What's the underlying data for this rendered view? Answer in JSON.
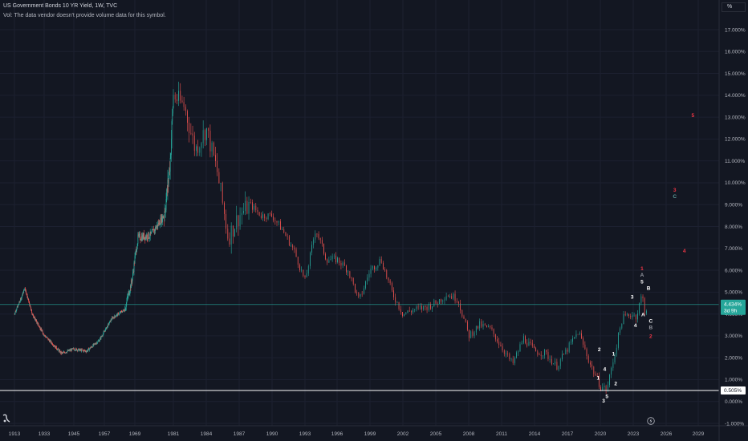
{
  "header": {
    "title": "US Government Bonds 10 YR Yield, 1W, TVC",
    "vol_note": "Vol: The data vendor doesn't provide volume data for this symbol."
  },
  "price_axis": {
    "unit": "%",
    "ticks": [
      "17.000%",
      "16.000%",
      "15.000%",
      "14.000%",
      "13.000%",
      "12.000%",
      "11.000%",
      "10.000%",
      "9.000%",
      "8.000%",
      "7.000%",
      "6.000%",
      "5.000%",
      "4.000%",
      "3.000%",
      "2.000%",
      "1.000%",
      "0.000%",
      "-1.000%"
    ],
    "current_label": "4.434%",
    "current_countdown": "3d 9h",
    "hline_label": "0.505%"
  },
  "time_axis": {
    "ticks": [
      "1913",
      "1933",
      "1945",
      "1957",
      "1969",
      "1981",
      "1984",
      "1987",
      "1990",
      "1993",
      "1996",
      "1999",
      "2002",
      "2005",
      "2008",
      "2011",
      "2014",
      "2017",
      "2020",
      "2023",
      "2026",
      "2029"
    ]
  },
  "colors": {
    "background": "#131722",
    "up": "#26a69a",
    "down": "#ef5350",
    "price_badge": "#26a69a",
    "hline": "#ffffff",
    "wave_white": "#ffffff",
    "wave_red": "#f23645",
    "wave_gray": "#9598a1",
    "wave_teal": "#5d9d9a"
  },
  "icons": {
    "logo": "tradingview-logo-icon",
    "goto": "lightning-goto-icon"
  },
  "chart_data": {
    "type": "line",
    "title": "US Government Bonds 10 YR Yield, 1W, TVC",
    "xlabel": "",
    "ylabel": "",
    "ylim": [
      -1,
      17
    ],
    "grid": true,
    "series": [
      {
        "name": "US10Y yield",
        "x": [
          1913,
          1918,
          1920,
          1925,
          1930,
          1935,
          1940,
          1945,
          1950,
          1955,
          1960,
          1965,
          1968,
          1970,
          1974,
          1978,
          1979,
          1980,
          1981,
          1982,
          1983,
          1984,
          1985,
          1986,
          1987,
          1988,
          1989,
          1990,
          1991,
          1992,
          1993,
          1994,
          1995,
          1996,
          1997,
          1998,
          1999,
          2000,
          2001,
          2002,
          2003,
          2004,
          2005,
          2006,
          2007,
          2008,
          2009,
          2010,
          2011,
          2012,
          2013,
          2014,
          2015,
          2016,
          2017,
          2018,
          2019,
          2020,
          2020.6,
          2021,
          2022,
          2022.8,
          2023.3,
          2023.8,
          2024.1,
          2024.3
        ],
        "values": [
          4.0,
          4.8,
          5.2,
          4.0,
          3.4,
          2.8,
          2.2,
          2.4,
          2.3,
          2.8,
          3.8,
          4.2,
          5.6,
          7.5,
          7.6,
          8.5,
          9.5,
          11.0,
          14.0,
          13.5,
          11.5,
          12.5,
          10.5,
          7.5,
          8.5,
          9.0,
          8.5,
          8.5,
          7.8,
          6.9,
          5.5,
          7.9,
          6.5,
          6.5,
          6.0,
          4.6,
          6.0,
          6.5,
          5.0,
          4.0,
          4.2,
          4.3,
          4.5,
          4.9,
          4.7,
          3.0,
          3.5,
          3.3,
          2.5,
          1.7,
          2.9,
          2.3,
          2.2,
          1.6,
          2.4,
          3.2,
          1.8,
          0.7,
          0.55,
          1.5,
          3.8,
          4.0,
          3.9,
          4.9,
          4.0,
          4.43
        ]
      }
    ],
    "horizontal_lines": [
      0.505
    ],
    "current_value": 4.434,
    "elliott_labels": [
      {
        "text": "1",
        "x": 2019.8,
        "y": 1.0,
        "color": "white"
      },
      {
        "text": "2",
        "x": 2019.9,
        "y": 2.3,
        "color": "white"
      },
      {
        "text": "3",
        "x": 2020.3,
        "y": -0.05,
        "color": "white"
      },
      {
        "text": "4",
        "x": 2020.4,
        "y": 1.4,
        "color": "white"
      },
      {
        "text": "5",
        "x": 2020.6,
        "y": 0.15,
        "color": "white"
      },
      {
        "text": "1",
        "x": 2021.2,
        "y": 2.1,
        "color": "white"
      },
      {
        "text": "2",
        "x": 2021.4,
        "y": 0.75,
        "color": "white"
      },
      {
        "text": "3",
        "x": 2022.9,
        "y": 4.7,
        "color": "white"
      },
      {
        "text": "4",
        "x": 2023.2,
        "y": 3.4,
        "color": "white"
      },
      {
        "text": "5",
        "x": 2023.8,
        "y": 5.4,
        "color": "white"
      },
      {
        "text": "A",
        "x": 2023.9,
        "y": 3.9,
        "color": "white"
      },
      {
        "text": "B",
        "x": 2024.4,
        "y": 5.1,
        "color": "white"
      },
      {
        "text": "C",
        "x": 2024.6,
        "y": 3.6,
        "color": "white"
      },
      {
        "text": "1",
        "x": 2023.8,
        "y": 6.0,
        "color": "red"
      },
      {
        "text": "A",
        "x": 2023.8,
        "y": 5.7,
        "color": "gray"
      },
      {
        "text": "B",
        "x": 2024.6,
        "y": 3.3,
        "color": "gray"
      },
      {
        "text": "2",
        "x": 2024.6,
        "y": 2.9,
        "color": "red"
      },
      {
        "text": "3",
        "x": 2026.8,
        "y": 9.6,
        "color": "red"
      },
      {
        "text": "C",
        "x": 2026.8,
        "y": 9.3,
        "color": "teal"
      },
      {
        "text": "4",
        "x": 2027.7,
        "y": 6.8,
        "color": "red"
      },
      {
        "text": "5",
        "x": 2028.5,
        "y": 13.0,
        "color": "red"
      }
    ]
  }
}
